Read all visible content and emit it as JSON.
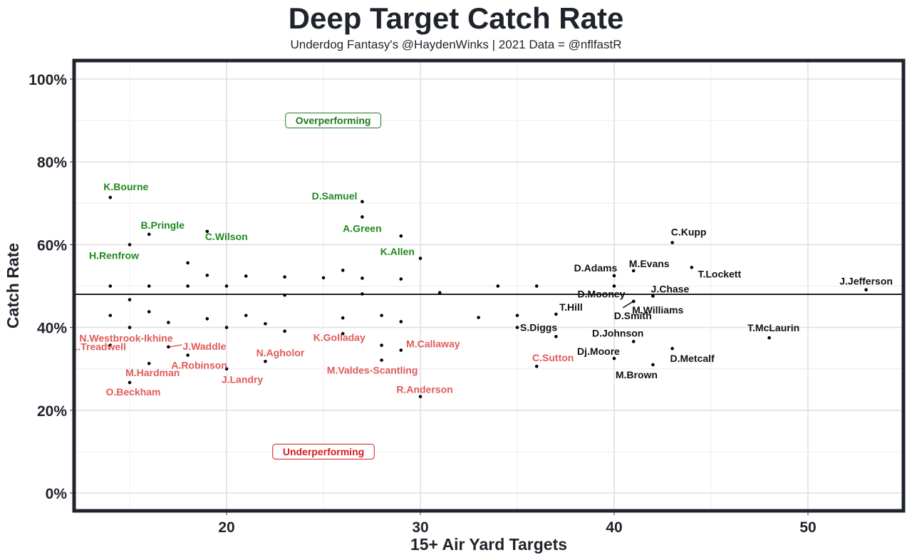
{
  "chart_data": {
    "type": "scatter",
    "title": "Deep Target Catch Rate",
    "subtitle": "Underdog Fantasy's @HaydenWinks | 2021 Data = @nflfastR",
    "xlabel": "15+ Air Yard Targets",
    "ylabel": "Catch Rate",
    "xlim": [
      12.2,
      55.3
    ],
    "ylim": [
      -4,
      104
    ],
    "xticks": [
      20,
      30,
      40,
      50
    ],
    "xtick_labels": [
      "20",
      "30",
      "40",
      "50"
    ],
    "yticks": [
      0,
      20,
      40,
      60,
      80,
      100
    ],
    "ytick_labels": [
      "0%",
      "20%",
      "40%",
      "60%",
      "80%",
      "100%"
    ],
    "grid": true,
    "reference_line": {
      "y": 48,
      "label": ""
    },
    "annotations": [
      {
        "text": "Overperforming",
        "x": 25.5,
        "y": 90,
        "color": "#1a7a1a"
      },
      {
        "text": "Underperforming",
        "x": 25.0,
        "y": 10,
        "color": "#d7191c"
      }
    ],
    "colors": {
      "over": "#1f8a1f",
      "under": "#e05a5a",
      "neutral": "#111111",
      "point": "#000000",
      "frame": "#1f232b"
    },
    "points": [
      {
        "name": "K.Bourne",
        "x": 14,
        "y": 71.4,
        "group": "over"
      },
      {
        "name": "B.Pringle",
        "x": 16,
        "y": 62.5,
        "group": "over"
      },
      {
        "name": "H.Renfrow",
        "x": 15,
        "y": 60.0,
        "group": "over"
      },
      {
        "name": "C.Wilson",
        "x": 19,
        "y": 63.2,
        "group": "over"
      },
      {
        "name": "D.Samuel",
        "x": 27,
        "y": 70.4,
        "group": "over"
      },
      {
        "name": "A.Green",
        "x": 27,
        "y": 66.7,
        "group": "over"
      },
      {
        "name": "K.Allen",
        "x": 29,
        "y": 62.1,
        "group": "over"
      },
      {
        "name": "C.Kupp",
        "x": 43,
        "y": 60.5,
        "group": "neutral"
      },
      {
        "name": "T.Lockett",
        "x": 44,
        "y": 54.5,
        "group": "neutral"
      },
      {
        "name": "M.Evans",
        "x": 41,
        "y": 53.7,
        "group": "neutral"
      },
      {
        "name": "D.Adams",
        "x": 40,
        "y": 52.5,
        "group": "neutral"
      },
      {
        "name": "D.Mooney",
        "x": 40,
        "y": 50.0,
        "group": "neutral"
      },
      {
        "name": "J.Chase",
        "x": 42,
        "y": 47.6,
        "group": "neutral"
      },
      {
        "name": "J.Jefferson",
        "x": 53,
        "y": 49.1,
        "group": "neutral"
      },
      {
        "name": "D.Smith",
        "x": 41,
        "y": 46.3,
        "group": "neutral"
      },
      {
        "name": "M.Williams",
        "x": 41,
        "y": 46.3,
        "group": "neutral"
      },
      {
        "name": "T.Hill",
        "x": 37,
        "y": 43.2,
        "group": "neutral"
      },
      {
        "name": "S.Diggs",
        "x": 35,
        "y": 40.0,
        "group": "neutral"
      },
      {
        "name": "D.Johnson",
        "x": 41,
        "y": 36.6,
        "group": "neutral"
      },
      {
        "name": "T.McLaurin",
        "x": 48,
        "y": 37.5,
        "group": "neutral"
      },
      {
        "name": "D.Metcalf",
        "x": 43,
        "y": 34.9,
        "group": "neutral"
      },
      {
        "name": "Dj.Moore",
        "x": 40,
        "y": 32.5,
        "group": "neutral"
      },
      {
        "name": "M.Brown",
        "x": 42,
        "y": 31.0,
        "group": "neutral"
      },
      {
        "name": "C.Sutton",
        "x": 36,
        "y": 30.6,
        "group": "under"
      },
      {
        "name": "N.Westbrook-Ikhine",
        "x": 15,
        "y": 40.0,
        "group": "under"
      },
      {
        "name": "L.Treadwell",
        "x": 14,
        "y": 35.7,
        "group": "under"
      },
      {
        "name": "J.Waddle",
        "x": 17,
        "y": 35.3,
        "group": "under"
      },
      {
        "name": "A.Robinson",
        "x": 18,
        "y": 33.3,
        "group": "under"
      },
      {
        "name": "M.Hardman",
        "x": 16,
        "y": 31.3,
        "group": "under"
      },
      {
        "name": "O.Beckham",
        "x": 15,
        "y": 26.7,
        "group": "under"
      },
      {
        "name": "J.Landry",
        "x": 20,
        "y": 30.0,
        "group": "under"
      },
      {
        "name": "N.Agholor",
        "x": 22,
        "y": 31.8,
        "group": "under"
      },
      {
        "name": "K.Golladay",
        "x": 26,
        "y": 38.5,
        "group": "under"
      },
      {
        "name": "M.Callaway",
        "x": 29,
        "y": 34.5,
        "group": "under"
      },
      {
        "name": "M.Valdes-Scantling",
        "x": 28,
        "y": 32.1,
        "group": "under"
      },
      {
        "name": "R.Anderson",
        "x": 30,
        "y": 23.3,
        "group": "under"
      },
      {
        "name": "",
        "x": 14,
        "y": 50.0,
        "group": "unlabeled"
      },
      {
        "name": "",
        "x": 16,
        "y": 50.0,
        "group": "unlabeled"
      },
      {
        "name": "",
        "x": 18,
        "y": 50.0,
        "group": "unlabeled"
      },
      {
        "name": "",
        "x": 20,
        "y": 50.0,
        "group": "unlabeled"
      },
      {
        "name": "",
        "x": 18,
        "y": 55.6,
        "group": "unlabeled"
      },
      {
        "name": "",
        "x": 19,
        "y": 52.6,
        "group": "unlabeled"
      },
      {
        "name": "",
        "x": 21,
        "y": 52.4,
        "group": "unlabeled"
      },
      {
        "name": "",
        "x": 23,
        "y": 52.2,
        "group": "unlabeled"
      },
      {
        "name": "",
        "x": 23,
        "y": 47.8,
        "group": "unlabeled"
      },
      {
        "name": "",
        "x": 25,
        "y": 52.0,
        "group": "unlabeled"
      },
      {
        "name": "",
        "x": 26,
        "y": 53.8,
        "group": "unlabeled"
      },
      {
        "name": "",
        "x": 27,
        "y": 51.9,
        "group": "unlabeled"
      },
      {
        "name": "",
        "x": 27,
        "y": 48.1,
        "group": "unlabeled"
      },
      {
        "name": "",
        "x": 29,
        "y": 51.7,
        "group": "unlabeled"
      },
      {
        "name": "",
        "x": 30,
        "y": 56.7,
        "group": "unlabeled"
      },
      {
        "name": "",
        "x": 31,
        "y": 48.4,
        "group": "unlabeled"
      },
      {
        "name": "",
        "x": 34,
        "y": 50.0,
        "group": "unlabeled"
      },
      {
        "name": "",
        "x": 36,
        "y": 50.0,
        "group": "unlabeled"
      },
      {
        "name": "",
        "x": 15,
        "y": 46.7,
        "group": "unlabeled"
      },
      {
        "name": "",
        "x": 14,
        "y": 42.9,
        "group": "unlabeled"
      },
      {
        "name": "",
        "x": 16,
        "y": 43.8,
        "group": "unlabeled"
      },
      {
        "name": "",
        "x": 17,
        "y": 41.2,
        "group": "unlabeled"
      },
      {
        "name": "",
        "x": 19,
        "y": 42.1,
        "group": "unlabeled"
      },
      {
        "name": "",
        "x": 20,
        "y": 40.0,
        "group": "unlabeled"
      },
      {
        "name": "",
        "x": 21,
        "y": 42.9,
        "group": "unlabeled"
      },
      {
        "name": "",
        "x": 22,
        "y": 40.9,
        "group": "unlabeled"
      },
      {
        "name": "",
        "x": 23,
        "y": 39.1,
        "group": "unlabeled"
      },
      {
        "name": "",
        "x": 26,
        "y": 42.3,
        "group": "unlabeled"
      },
      {
        "name": "",
        "x": 28,
        "y": 42.9,
        "group": "unlabeled"
      },
      {
        "name": "",
        "x": 29,
        "y": 41.4,
        "group": "unlabeled"
      },
      {
        "name": "",
        "x": 28,
        "y": 35.7,
        "group": "unlabeled"
      },
      {
        "name": "",
        "x": 33,
        "y": 42.4,
        "group": "unlabeled"
      },
      {
        "name": "",
        "x": 35,
        "y": 42.9,
        "group": "unlabeled"
      },
      {
        "name": "",
        "x": 37,
        "y": 37.8,
        "group": "unlabeled"
      }
    ]
  }
}
